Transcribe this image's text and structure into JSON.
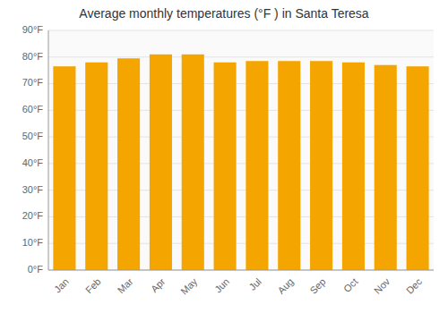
{
  "chart_data": {
    "type": "bar",
    "title": "Average monthly temperatures (°F ) in Santa Teresa",
    "categories": [
      "Jan",
      "Feb",
      "Mar",
      "Apr",
      "May",
      "Jun",
      "Jul",
      "Aug",
      "Sep",
      "Oct",
      "Nov",
      "Dec"
    ],
    "values": [
      76.5,
      78.0,
      79.5,
      81.0,
      81.0,
      78.0,
      78.5,
      78.5,
      78.5,
      78.0,
      77.0,
      76.5
    ],
    "color": "#F5A500",
    "ylim": [
      0,
      90
    ],
    "yticks": [
      {
        "value": 0,
        "label": "0°F"
      },
      {
        "value": 10,
        "label": "10°F"
      },
      {
        "value": 20,
        "label": "20°F"
      },
      {
        "value": 30,
        "label": "30°F"
      },
      {
        "value": 40,
        "label": "40°F"
      },
      {
        "value": 50,
        "label": "50°F"
      },
      {
        "value": 60,
        "label": "60°F"
      },
      {
        "value": 70,
        "label": "70°F"
      },
      {
        "value": 80,
        "label": "80°F"
      },
      {
        "value": 90,
        "label": "90°F"
      }
    ],
    "grid": true
  }
}
